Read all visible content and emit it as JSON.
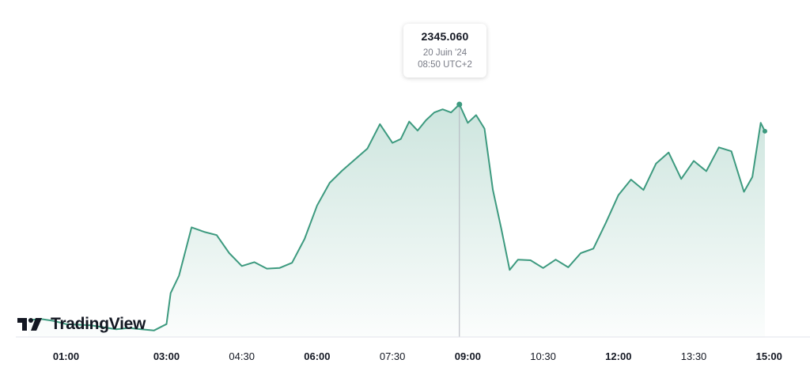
{
  "chart_data": {
    "type": "area",
    "series": [
      {
        "color": "#3d9a7f",
        "x": [
          "00:15",
          "00:30",
          "00:45",
          "01:00",
          "01:15",
          "01:30",
          "01:45",
          "02:00",
          "02:15",
          "02:30",
          "02:45",
          "03:00",
          "03:05",
          "03:15",
          "03:30",
          "03:45",
          "04:00",
          "04:15",
          "04:30",
          "04:45",
          "05:00",
          "05:15",
          "05:30",
          "05:45",
          "06:00",
          "06:15",
          "06:30",
          "06:45",
          "07:00",
          "07:15",
          "07:30",
          "07:40",
          "07:50",
          "08:00",
          "08:10",
          "08:20",
          "08:30",
          "08:40",
          "08:50",
          "09:00",
          "09:10",
          "09:20",
          "09:30",
          "09:40",
          "09:50",
          "10:00",
          "10:15",
          "10:30",
          "10:45",
          "11:00",
          "11:15",
          "11:30",
          "11:45",
          "12:00",
          "12:15",
          "12:30",
          "12:45",
          "13:00",
          "13:15",
          "13:30",
          "13:45",
          "14:00",
          "14:15",
          "14:30",
          "14:40",
          "14:50",
          "14:55"
        ],
        "values": [
          2311.6,
          2311.8,
          2311.5,
          2311.0,
          2310.9,
          2310.8,
          2310.5,
          2310.2,
          2310.4,
          2310.2,
          2310.0,
          2311.0,
          2315.8,
          2318.5,
          2326.0,
          2325.3,
          2324.8,
          2322.0,
          2320.0,
          2320.6,
          2319.6,
          2319.7,
          2320.5,
          2324.2,
          2329.4,
          2332.9,
          2334.8,
          2336.5,
          2338.2,
          2342.0,
          2339.1,
          2339.7,
          2342.4,
          2341.0,
          2342.6,
          2343.8,
          2344.3,
          2343.8,
          2345.06,
          2342.2,
          2343.4,
          2341.3,
          2331.8,
          2325.8,
          2319.4,
          2321.0,
          2320.9,
          2319.7,
          2321.0,
          2319.8,
          2322.0,
          2322.7,
          2326.7,
          2331.0,
          2333.4,
          2331.8,
          2335.9,
          2337.6,
          2333.5,
          2336.3,
          2334.7,
          2338.4,
          2337.8,
          2331.5,
          2333.8,
          2342.2,
          2340.9
        ]
      }
    ],
    "xticks": [
      "01:00",
      "03:00",
      "04:30",
      "06:00",
      "07:30",
      "09:00",
      "10:30",
      "12:00",
      "13:30",
      "15:00"
    ],
    "xticks_bold": [
      "01:00",
      "03:00",
      "06:00",
      "09:00",
      "12:00",
      "15:00"
    ],
    "xlim": [
      "00:00",
      "15:30"
    ],
    "ylim": [
      2309.0,
      2348.0
    ],
    "grid": false
  },
  "tooltip": {
    "value": "2345.060",
    "date": "20 Juin '24",
    "time": "08:50 UTC+2",
    "x": "08:50"
  },
  "logo": {
    "text": "TradingView"
  }
}
